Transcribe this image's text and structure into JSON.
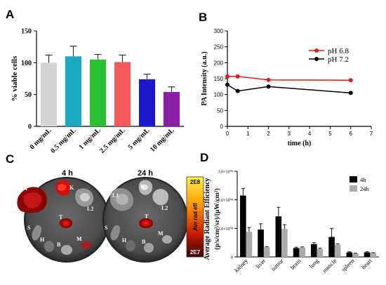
{
  "panels": {
    "A": {
      "letter": "A"
    },
    "B": {
      "letter": "B"
    },
    "C": {
      "letter": "C",
      "time_left": "4 h",
      "time_right": "24 h",
      "organ_labels_left": [
        "L1",
        "K",
        "L2",
        "T",
        "S",
        "H",
        "B",
        "M"
      ],
      "organ_labels_right": [
        "L1",
        "K",
        "L2",
        "T",
        "S",
        "H",
        "B",
        "M"
      ],
      "colorbar": {
        "max": "2E8",
        "min": "2E7",
        "label": "Avr rad eff"
      }
    },
    "D": {
      "letter": "D"
    }
  },
  "chart_data": [
    {
      "type": "bar",
      "panel": "A",
      "categories": [
        "0 mg/mL",
        "0.5 mg/mL",
        "1 mg/mL",
        "2.5 mg/mL",
        "5 mg/mL",
        "10 mg/mL"
      ],
      "values": [
        100,
        110,
        105,
        101,
        74,
        54
      ],
      "errors": [
        12,
        16,
        8,
        11,
        8,
        8
      ],
      "colors": [
        "#d4d4d4",
        "#19a9c2",
        "#27c133",
        "#f45a5a",
        "#1a1acc",
        "#8a1ea6"
      ],
      "ylabel": "% viable cells",
      "ylim": [
        0,
        150
      ],
      "yticks": [
        0,
        50,
        100,
        150
      ]
    },
    {
      "type": "line",
      "panel": "B",
      "xlabel": "time (h)",
      "ylabel": "PA Intensity (a.u.)",
      "xlim": [
        0,
        7
      ],
      "ylim": [
        0,
        300
      ],
      "xticks": [
        0,
        1,
        2,
        3,
        4,
        5,
        6,
        7
      ],
      "yticks": [
        0,
        50,
        100,
        150,
        200,
        250,
        300
      ],
      "legend_position": "top-right",
      "series": [
        {
          "name": "pH 6.8",
          "color": "#e41a1c",
          "x": [
            0,
            0.5,
            2,
            6
          ],
          "y": [
            157,
            157,
            146,
            145
          ]
        },
        {
          "name": "pH 7.2",
          "color": "#000000",
          "x": [
            0,
            0.5,
            2,
            6
          ],
          "y": [
            131,
            111,
            125,
            105
          ]
        }
      ]
    },
    {
      "type": "bar",
      "panel": "D",
      "ylabel": "Average Radiant Efficiency",
      "ylabel_units": "(p/s/cm²/sr)/(μW/cm²)",
      "categories": [
        "kidney",
        "liver",
        "tumor",
        "brain",
        "lung",
        "muscle",
        "spleen",
        "heart"
      ],
      "ylim": [
        0,
        300000000
      ],
      "yticks": [
        0,
        100000000,
        200000000,
        300000000
      ],
      "yticks_labels": [
        "0",
        "1.0×10⁰⁸",
        "2.0×10⁰⁸",
        "3.0×10⁰⁸"
      ],
      "legend_position": "top-right",
      "series": [
        {
          "name": "4h",
          "color": "#000000",
          "values": [
            215000000,
            96000000,
            142000000,
            31000000,
            45000000,
            70000000,
            16000000,
            16000000
          ],
          "errors": [
            25000000,
            20000000,
            32000000,
            3000000,
            5000000,
            30000000,
            2000000,
            2000000
          ]
        },
        {
          "name": "24h",
          "color": "#aaaaaa",
          "values": [
            88000000,
            34000000,
            98000000,
            33000000,
            28000000,
            43000000,
            12000000,
            14000000
          ],
          "errors": [
            15000000,
            2000000,
            15000000,
            2000000,
            3000000,
            3000000,
            1000000,
            1000000
          ]
        }
      ]
    }
  ]
}
